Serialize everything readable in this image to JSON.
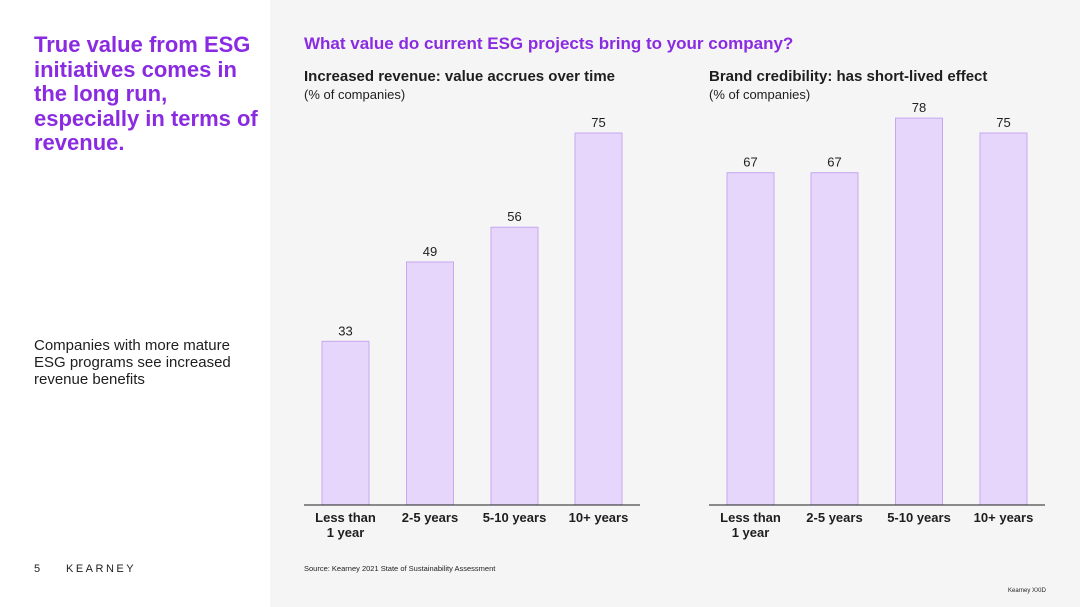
{
  "left": {
    "headline": "True value from ESG initiatives comes in the long run, especially in terms of revenue.",
    "subtext": "Companies with more mature ESG programs see increased revenue benefits",
    "page_number": "5",
    "brand": "KEARNEY"
  },
  "right": {
    "question": "What value do current ESG projects bring to your company?",
    "source": "Source: Kearney 2021 State of Sustainability Assessment",
    "footer": "Kearney XXID"
  },
  "colors": {
    "accent": "#8a2be2",
    "bar_fill": "#e6d6fb",
    "bar_stroke": "#c6a8f0"
  },
  "chart_data": [
    {
      "type": "bar",
      "title": "Increased revenue: value accrues over time",
      "subtitle": "(% of companies)",
      "categories": [
        "Less than 1 year",
        "2-5 years",
        "5-10 years",
        "10+ years"
      ],
      "values": [
        33,
        49,
        56,
        75
      ],
      "ylim": [
        0,
        100
      ],
      "grid": false
    },
    {
      "type": "bar",
      "title": "Brand credibility: has short-lived effect",
      "subtitle": "(% of companies)",
      "categories": [
        "Less than 1 year",
        "2-5 years",
        "5-10 years",
        "10+ years"
      ],
      "values": [
        67,
        67,
        78,
        75
      ],
      "ylim": [
        0,
        100
      ],
      "grid": false
    }
  ]
}
